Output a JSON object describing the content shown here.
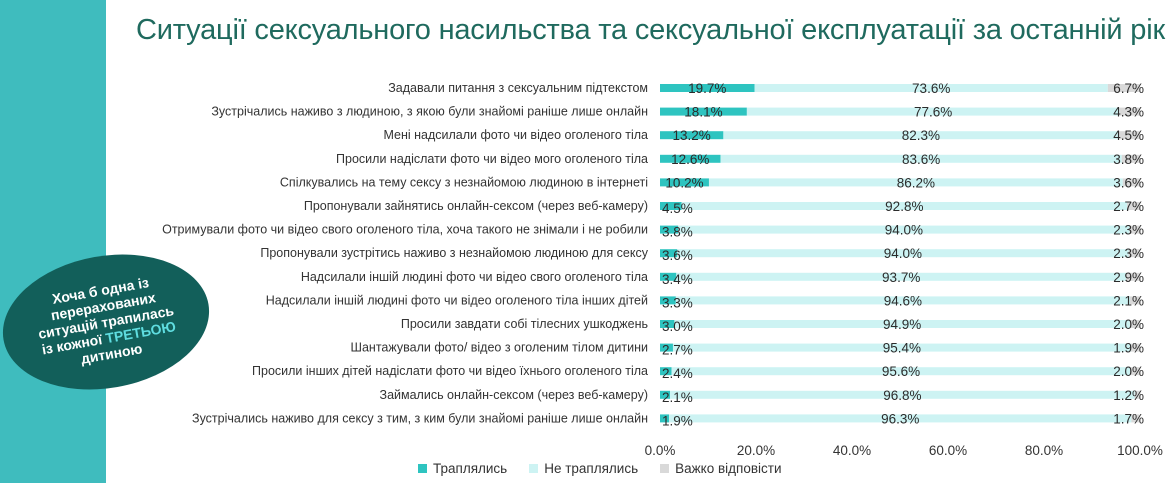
{
  "title": "Ситуації сексуального насильства та сексуальної експлуатації за останній рік",
  "callout": {
    "line1": "Хоча б одна із",
    "line2": "перерахованих",
    "line3": "ситуацій трапилась",
    "line4_pre": "із кожної ",
    "line4_highlight": "ТРЕТЬОЮ",
    "line5": "дитиною"
  },
  "colors": {
    "happened": "#2ec4c0",
    "not_happened": "#cdf3f3",
    "hard_to_answer": "#d9d9d9",
    "title": "#1f6a5e",
    "side_bar": "#3fbcbe",
    "callout": "#125f5a"
  },
  "chart_data": {
    "type": "bar",
    "orientation": "horizontal",
    "stacked": true,
    "title": "Ситуації сексуального насильства та сексуальної експлуатації за останній рік",
    "categories": [
      "Задавали питання з сексуальним підтекстом",
      "Зустрічались  наживо з людиною, з якою були знайомі раніше лише онлайн",
      "Мені надсилали фото чи відео оголеного тіла",
      "Просили надіслати фото чи відео мого оголеного тіла",
      "Спілкувались на тему сексу з незнайомою людиною в інтернеті",
      "Пропонували зайнятись онлайн-сексом (через веб-камеру)",
      "Отримували фото чи відео свого оголеного тіла, хоча такого не знімали і не робили",
      "Пропонували зустрітись наживо з незнайомою людиною для сексу",
      "Надсилали іншій людині фото чи відео свого оголеного тіла",
      "Надсилали іншій людині фото чи відео оголеного тіла інших дітей",
      "Просили завдати собі тілесних ушкоджень",
      "Шантажували фото/ відео з оголеним тілом дитини",
      "Просили інших дітей надіслати фото чи відео їхнього оголеного тіла",
      "Займались онлайн-сексом (через веб-камеру)",
      "Зустрічались наживо для сексу з тим, з ким були знайомі раніше лише онлайн"
    ],
    "series": [
      {
        "name": "Траплялись",
        "values": [
          19.7,
          18.1,
          13.2,
          12.6,
          10.2,
          4.5,
          3.8,
          3.6,
          3.4,
          3.3,
          3.0,
          2.7,
          2.4,
          2.1,
          1.9
        ]
      },
      {
        "name": "Не траплялись",
        "values": [
          73.6,
          77.6,
          82.3,
          83.6,
          86.2,
          92.8,
          94.0,
          94.0,
          93.7,
          94.6,
          94.9,
          95.4,
          95.6,
          96.8,
          96.3
        ]
      },
      {
        "name": "Важко відповісти",
        "values": [
          6.7,
          4.3,
          4.5,
          3.8,
          3.6,
          2.7,
          2.3,
          2.3,
          2.9,
          2.1,
          2.0,
          1.9,
          2.0,
          1.2,
          1.7
        ]
      }
    ],
    "labels": {
      "happened": [
        "19.7%",
        "18.1%",
        "13.2%",
        "12.6%",
        "10.2%",
        "4.5%",
        "3.8%",
        "3.6%",
        "3.4%",
        "3.3%",
        "3.0%",
        "2.7%",
        "2.4%",
        "2.1%",
        "1.9%"
      ],
      "not_happened": [
        "73.6%",
        "77.6%",
        "82.3%",
        "83.6%",
        "86.2%",
        "92.8%",
        "94.0%",
        "94.0%",
        "93.7%",
        "94.6%",
        "94.9%",
        "95.4%",
        "95.6%",
        "96.8%",
        "96.3%"
      ],
      "hard_to_answer": [
        "6.7%",
        "4.3%",
        "4.5%",
        "3.8%",
        "3.6%",
        "2.7%",
        "2.3%",
        "2.3%",
        "2.9%",
        "2.1%",
        "2.0%",
        "1.9%",
        "2.0%",
        "1.2%",
        "1.7%"
      ]
    },
    "xlim": [
      0,
      100
    ],
    "xticks": [
      "0.0%",
      "20.0%",
      "40.0%",
      "60.0%",
      "80.0%",
      "100.0%"
    ],
    "grid": false,
    "legend_position": "bottom"
  }
}
